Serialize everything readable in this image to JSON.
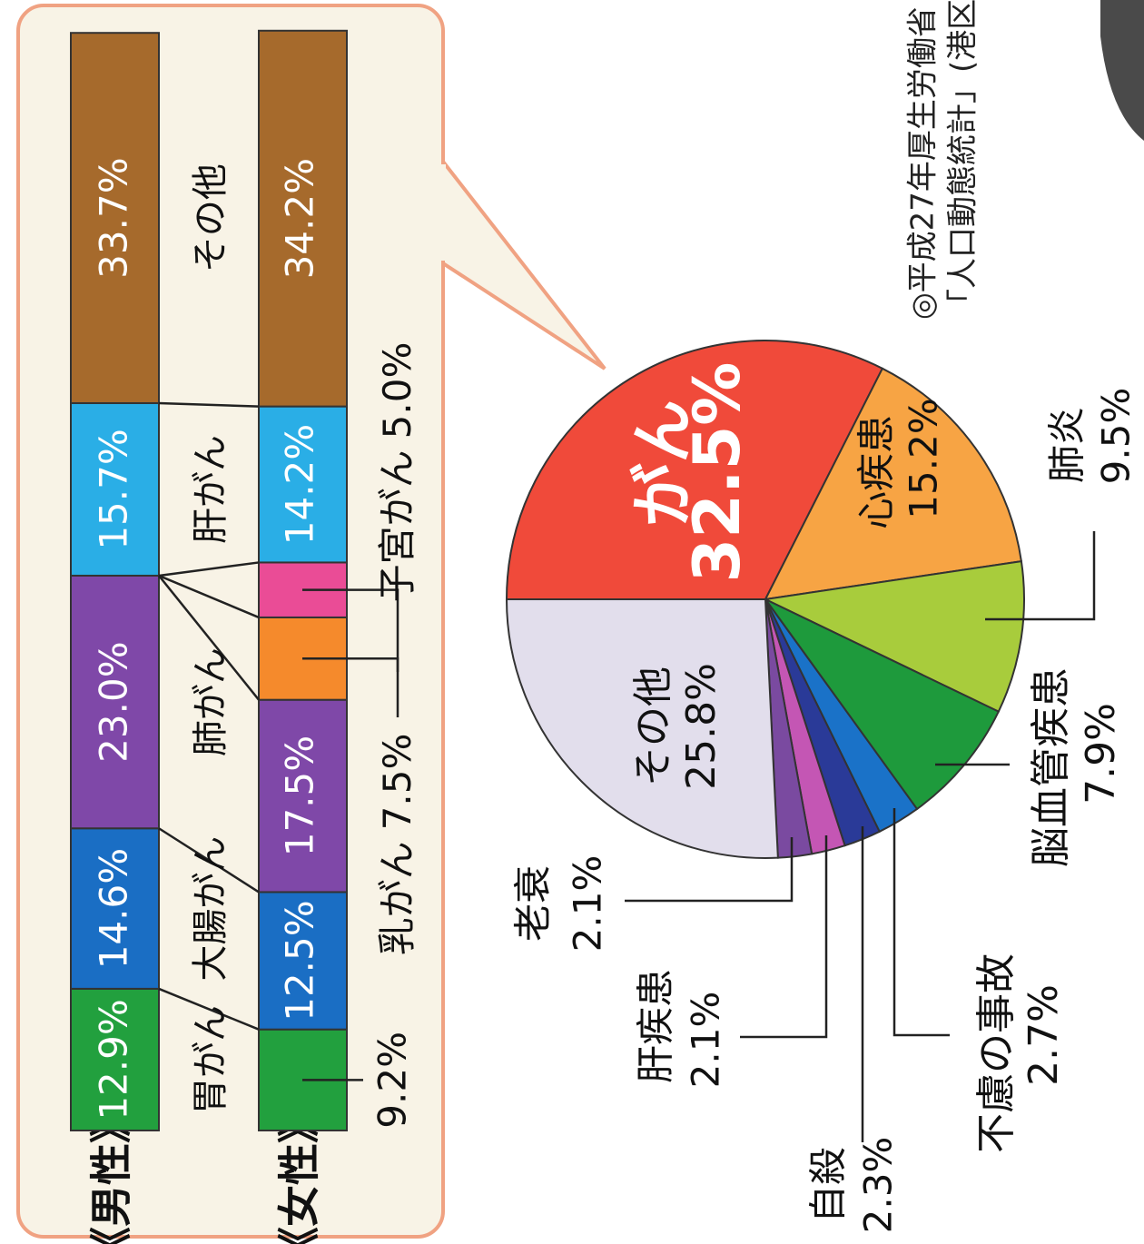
{
  "source": [
    "◎平成27年厚生労働省",
    "「人口動態統計」(港区"
  ],
  "chart_data": [
    {
      "type": "pie",
      "categories": [
        "がん",
        "心疾患",
        "肺炎",
        "脳血管疾患",
        "不慮の事故",
        "自殺",
        "肝疾患",
        "老衰",
        "その他"
      ],
      "values": [
        32.5,
        15.2,
        9.5,
        7.9,
        2.7,
        2.3,
        2.1,
        2.1,
        25.8
      ],
      "value_labels": [
        "32.5%",
        "15.2%",
        "9.5%",
        "7.9%",
        "2.7%",
        "2.3%",
        "2.1%",
        "2.1%",
        "25.8%"
      ],
      "colors": [
        "#f04a3a",
        "#f7a444",
        "#a8cc3c",
        "#1e9a3c",
        "#1a72c8",
        "#2a3a98",
        "#c456b4",
        "#7a4aa0",
        "#e2deec"
      ]
    },
    {
      "type": "stacked_bar",
      "categories": [
        "《男性》",
        "《女性》"
      ],
      "series": [
        {
          "name": "胃がん",
          "color": "#22a03e",
          "values": [
            12.9,
            9.2
          ],
          "value_labels": [
            "12.9%",
            "9.2%"
          ]
        },
        {
          "name": "大腸がん",
          "color": "#1a6ec4",
          "values": [
            14.6,
            12.5
          ],
          "value_labels": [
            "14.6%",
            "12.5%"
          ]
        },
        {
          "name": "肺がん",
          "color": "#7f48a8",
          "values": [
            23.0,
            17.5
          ],
          "value_labels": [
            "23.0%",
            "17.5%"
          ]
        },
        {
          "name": "乳がん",
          "color": "#f58a2c",
          "values": [
            null,
            7.5
          ],
          "value_labels": [
            null,
            "7.5%"
          ]
        },
        {
          "name": "子宮がん",
          "color": "#ea4c96",
          "values": [
            null,
            5.0
          ],
          "value_labels": [
            null,
            "5.0%"
          ]
        },
        {
          "name": "肝がん",
          "color": "#2aaee6",
          "values": [
            15.7,
            14.2
          ],
          "value_labels": [
            "15.7%",
            "14.2%"
          ]
        },
        {
          "name": "その他",
          "color": "#a66a2c",
          "values": [
            33.7,
            34.2
          ],
          "value_labels": [
            "33.7%",
            "34.2%"
          ]
        }
      ]
    }
  ]
}
